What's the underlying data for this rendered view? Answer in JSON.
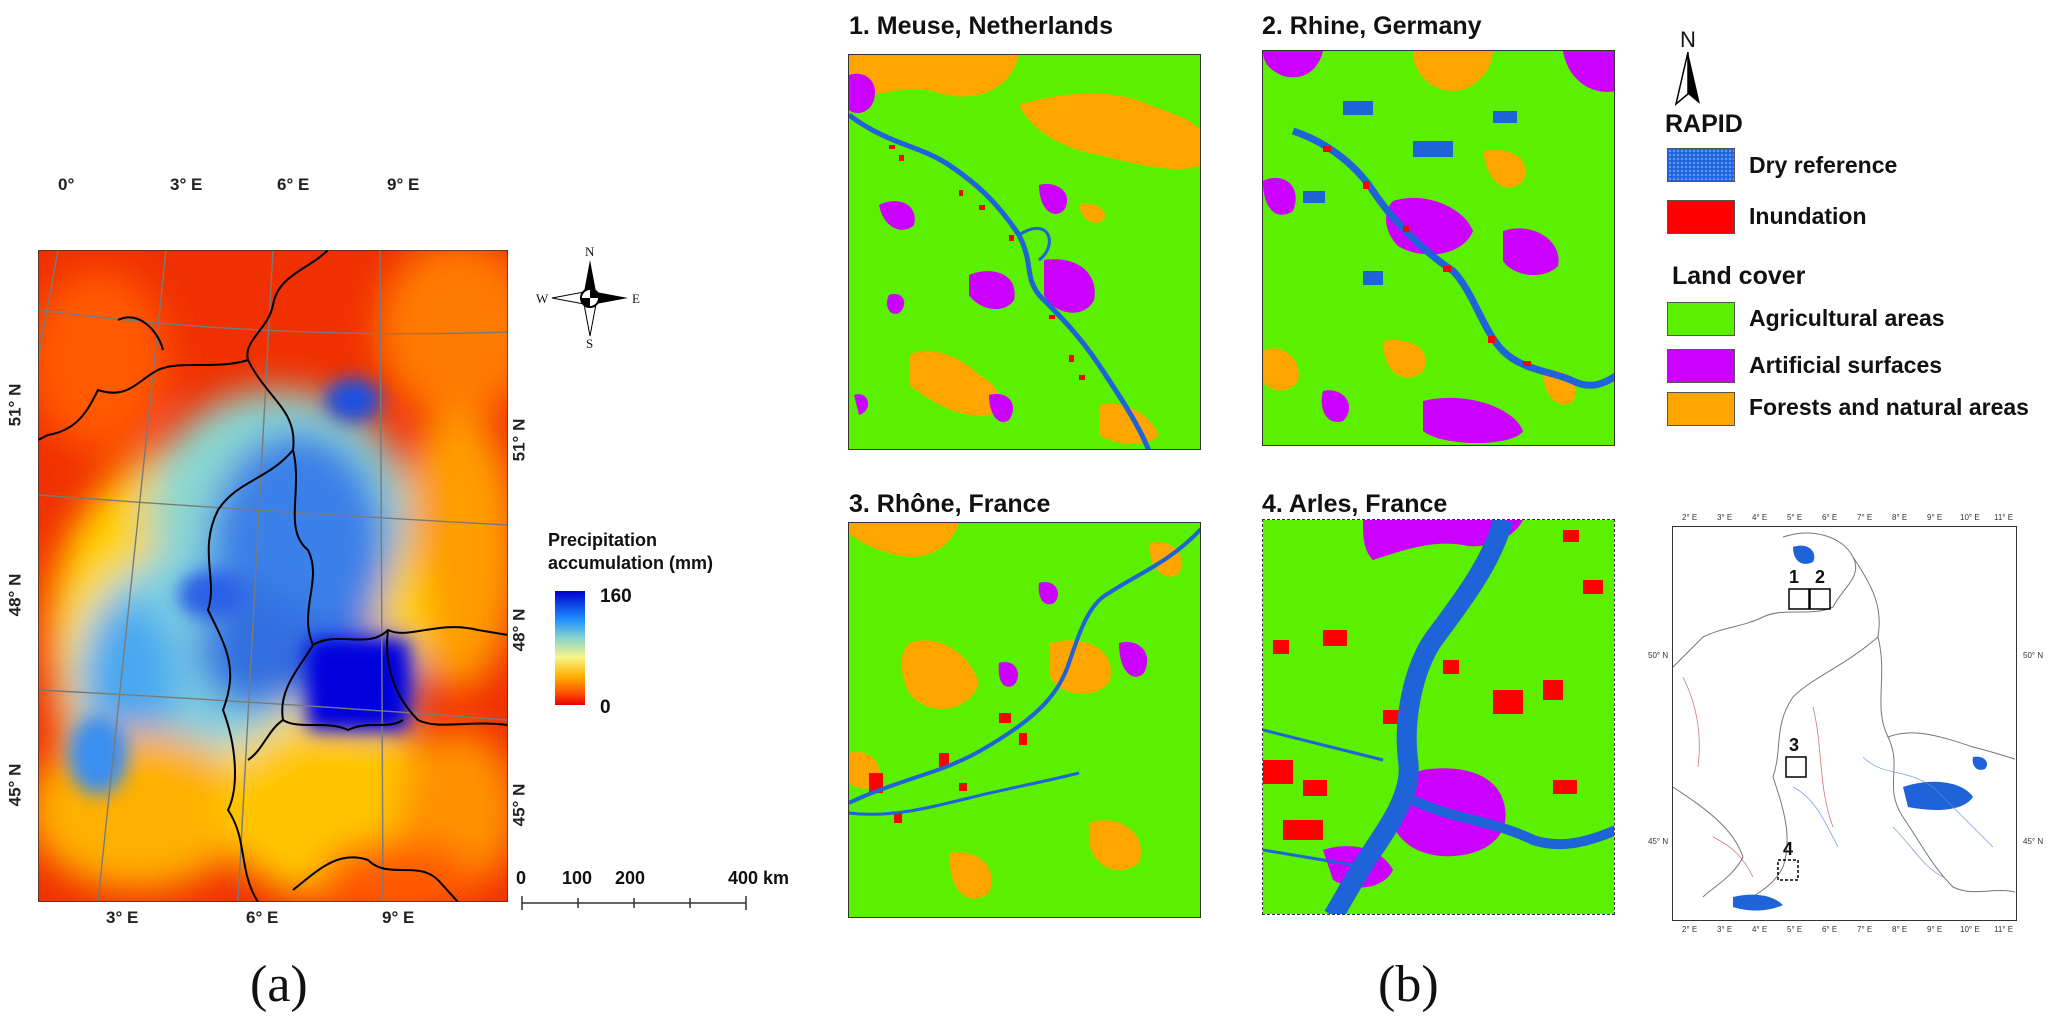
{
  "panel_a": {
    "label": "(a)",
    "top_lon_ticks": [
      "0°",
      "3° E",
      "6° E",
      "9° E"
    ],
    "bottom_lon_ticks": [
      "3° E",
      "6° E",
      "9° E"
    ],
    "left_lat_ticks": [
      "51° N",
      "48° N",
      "45° N"
    ],
    "right_lat_ticks": [
      "51° N",
      "48° N",
      "45° N"
    ],
    "compass": {
      "n": "N",
      "s": "S",
      "e": "E",
      "w": "W"
    },
    "colorbar": {
      "title_line1": "Precipitation",
      "title_line2": "accumulation (mm)",
      "max": "160",
      "min": "0",
      "colors": [
        "#0000cc",
        "#1f8fff",
        "#7fd0d0",
        "#f7f58a",
        "#ffb000",
        "#ff4e00",
        "#e60000"
      ]
    },
    "scalebar": {
      "labels": [
        "0",
        "100",
        "200",
        "400 km"
      ]
    }
  },
  "panel_b": {
    "label": "(b)",
    "maps": [
      {
        "title": "1. Meuse, Netherlands"
      },
      {
        "title": "2. Rhine, Germany"
      },
      {
        "title": "3. Rhône, France"
      },
      {
        "title": "4. Arles, France"
      }
    ],
    "north": "N",
    "legend": {
      "rapid_title": "RAPID",
      "dry_reference": "Dry reference",
      "inundation": "Inundation",
      "land_cover_title": "Land cover",
      "agricultural": "Agricultural areas",
      "artificial": "Artificial surfaces",
      "forests": "Forests and natural areas",
      "colors": {
        "dry_reference": "#1f63d8",
        "inundation": "#ff0000",
        "agricultural": "#5bef00",
        "artificial": "#cc00ff",
        "forests": "#ffa500"
      }
    },
    "locator": {
      "lon_ticks": [
        "2° E",
        "3° E",
        "4° E",
        "5° E",
        "6° E",
        "7° E",
        "8° E",
        "9° E",
        "10° E",
        "11° E"
      ],
      "lat_left": [
        "50° N",
        "45° N"
      ],
      "lat_right": [
        "50° N",
        "45° N"
      ],
      "boxes": [
        "1",
        "2",
        "3",
        "4"
      ]
    }
  }
}
